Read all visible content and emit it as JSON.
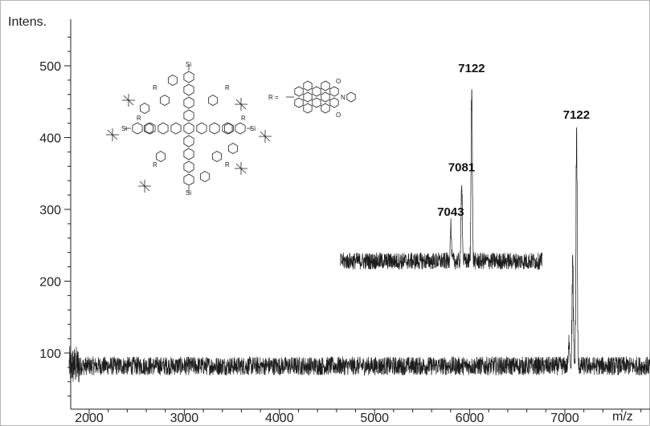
{
  "chart_data": {
    "type": "line",
    "ylabel": "Intens.",
    "xlabel": "m/z",
    "xlim": [
      1800,
      8000
    ],
    "ylim": [
      25,
      545
    ],
    "x_ticks": [
      "2000",
      "3000",
      "4000",
      "5000",
      "6000",
      "7000"
    ],
    "y_ticks": [
      "100",
      "200",
      "300",
      "400",
      "500"
    ],
    "baseline_level": 82,
    "main_peaks": [
      {
        "x": 7045,
        "y": 120
      },
      {
        "x": 7081,
        "y": 232
      },
      {
        "x": 7122,
        "y": 415,
        "label": "7122"
      }
    ],
    "inset": {
      "description": "magnified isotope region",
      "x_start": 4640,
      "x_end": 6760,
      "baseline_level": 228,
      "peaks": [
        {
          "x": 5800,
          "y": 280,
          "label": "7043"
        },
        {
          "x": 5915,
          "y": 342,
          "label": "7081"
        },
        {
          "x": 6020,
          "y": 480,
          "label": "7122"
        }
      ]
    },
    "structure": {
      "r_label": "R =",
      "atom_labels": [
        "Si",
        "R",
        "N",
        "O"
      ]
    }
  }
}
